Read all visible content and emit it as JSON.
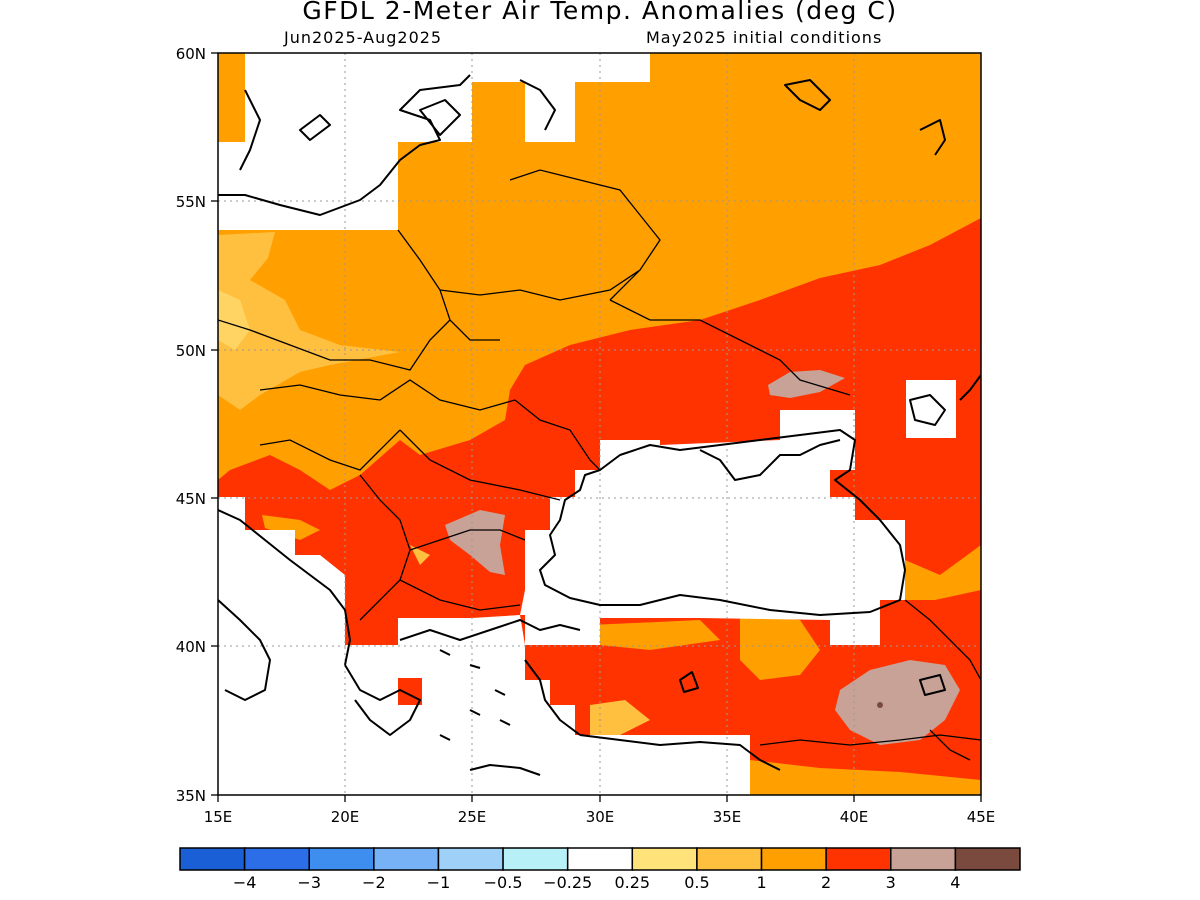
{
  "title": "GFDL 2-Meter Air Temp. Anomalies (deg C)",
  "subtitle_left": "Jun2025-Aug2025",
  "subtitle_right": "May2025 initial conditions",
  "map": {
    "lon_range": [
      15,
      45
    ],
    "lat_range": [
      35,
      60
    ],
    "x_ticks": [
      "15E",
      "20E",
      "25E",
      "30E",
      "35E",
      "40E",
      "45E"
    ],
    "y_ticks": [
      "60N",
      "55N",
      "50N",
      "45N",
      "40N",
      "35N"
    ],
    "grid": "dotted gray at 5-degree intervals"
  },
  "colorbar": {
    "colors": [
      "#1a5fd6",
      "#2b6ee8",
      "#3e8ef0",
      "#76b2f5",
      "#9fd0f8",
      "#b8f0f8",
      "#ffffff",
      "#ffe27a",
      "#ffbf3f",
      "#ff9f00",
      "#ff3300",
      "#c8a197",
      "#7a4a3e"
    ],
    "labels": [
      "−4",
      "−3",
      "−2",
      "−1",
      "−0.5",
      "−0.25",
      "0.25",
      "0.5",
      "1",
      "2",
      "3",
      "4"
    ]
  }
}
